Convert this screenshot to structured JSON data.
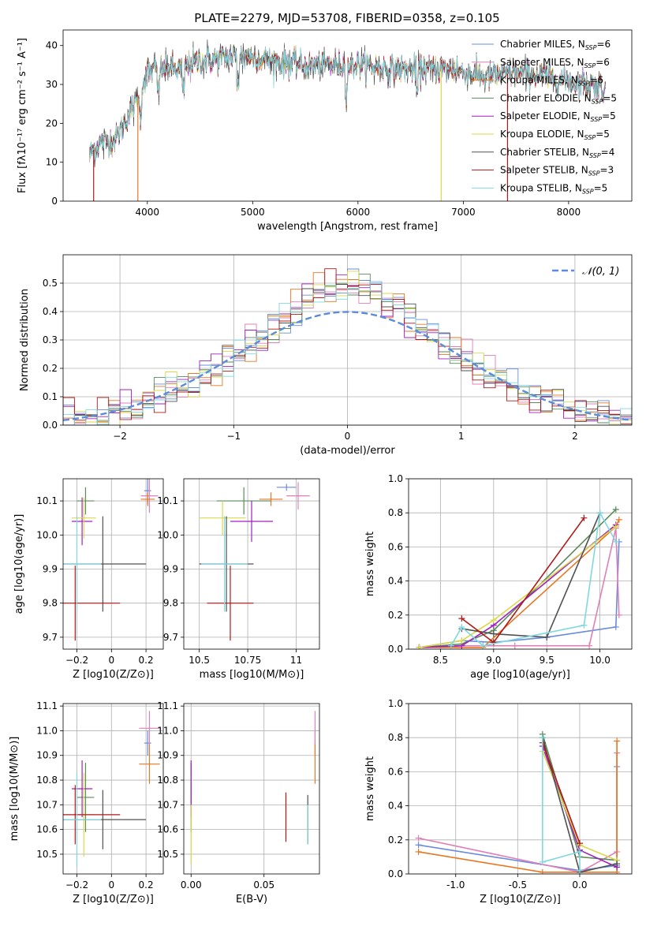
{
  "figure_title": "PLATE=2279, MJD=53708, FIBERID=0358, z=0.105",
  "colors": {
    "chabrier_miles": "#6a8bdc",
    "salpeter_miles": "#e07fb8",
    "kroupa_miles": "#e87722",
    "chabrier_elodie": "#5a8a5a",
    "salpeter_elodie": "#a020c0",
    "kroupa_elodie": "#d9d94a",
    "chabrier_stelib": "#505050",
    "salpeter_stelib": "#b01818",
    "kroupa_stelib": "#7fd8e0"
  },
  "chart_data": [
    {
      "id": "spectrum",
      "type": "line",
      "title": "PLATE=2279, MJD=53708, FIBERID=0358, z=0.105",
      "xlabel": "wavelength [Angstrom, rest frame]",
      "ylabel": "Flux [fλ10⁻¹⁷ erg cm⁻² s⁻¹ A⁻¹]",
      "xlim": [
        3200,
        8600
      ],
      "ylim": [
        0,
        44
      ],
      "xticks": [
        4000,
        5000,
        6000,
        7000,
        8000
      ],
      "yticks": [
        0,
        10,
        20,
        30,
        40
      ],
      "legend_position": "top-right",
      "legend": [
        "Chabrier MILES, N_SSP=6",
        "Salpeter MILES, N_SSP=6",
        "Kroupa MILES, N_SSP=6",
        "Chabrier ELODIE, N_SSP=5",
        "Salpeter ELODIE, N_SSP=5",
        "Kroupa ELODIE, N_SSP=5",
        "Chabrier STELIB, N_SSP=4",
        "Salpeter STELIB, N_SSP=3",
        "Kroupa STELIB, N_SSP=5"
      ],
      "spectrum_shape": {
        "x": [
          3450,
          3550,
          3700,
          3900,
          4000,
          4100,
          4300,
          4500,
          4800,
          5000,
          5200,
          5500,
          5800,
          6000,
          6300,
          6600,
          6900,
          7200,
          7500,
          7800,
          8000,
          8200,
          8350
        ],
        "y": [
          12,
          15,
          16,
          26,
          33,
          34,
          34,
          36,
          37,
          37,
          36,
          35,
          35,
          35,
          34,
          34,
          34,
          32,
          33,
          32,
          31,
          30,
          29
        ]
      },
      "spikes": [
        {
          "x": 3490,
          "y": 0
        },
        {
          "x": 3910,
          "y": 0
        },
        {
          "x": 6790,
          "y": 0
        },
        {
          "x": 7420,
          "y": 0
        }
      ]
    },
    {
      "id": "residuals",
      "type": "histogram",
      "xlabel": "(data-model)/error",
      "ylabel": "Normed distribution",
      "xlim": [
        -2.5,
        2.5
      ],
      "ylim": [
        0,
        0.6
      ],
      "xticks": [
        -2,
        -1,
        0,
        1,
        2
      ],
      "yticks": [
        0.0,
        0.1,
        0.2,
        0.3,
        0.4,
        0.5
      ],
      "legend_position": "top-right",
      "normal_label": "𝒩(0, 1)",
      "bin_width": 0.1
    },
    {
      "id": "age_vs_Z",
      "type": "errorbar",
      "xlabel": "Z [log10(Z/Z⊙)]",
      "ylabel": "age [log10(age/yr)]",
      "xlim": [
        -0.28,
        0.3
      ],
      "ylim": [
        9.665,
        10.165
      ],
      "xticks": [
        -0.2,
        0.0,
        0.2
      ],
      "yticks": [
        9.7,
        9.8,
        9.9,
        10.0,
        10.1
      ],
      "points": [
        {
          "c": "chabrier_miles",
          "x": 0.21,
          "xe": 0.02,
          "y": 10.13,
          "ye": 0.04
        },
        {
          "c": "salpeter_miles",
          "x": 0.22,
          "xe": 0.05,
          "y": 10.115,
          "ye": 0.05
        },
        {
          "c": "kroupa_miles",
          "x": 0.21,
          "xe": 0.04,
          "y": 10.105,
          "ye": 0.02
        },
        {
          "c": "chabrier_elodie",
          "x": -0.15,
          "xe": 0.05,
          "y": 10.1,
          "ye": 0.04
        },
        {
          "c": "salpeter_elodie",
          "x": -0.17,
          "xe": 0.06,
          "y": 10.04,
          "ye": 0.07
        },
        {
          "c": "kroupa_elodie",
          "x": -0.16,
          "xe": 0.07,
          "y": 10.05,
          "ye": 0.06
        },
        {
          "c": "chabrier_stelib",
          "x": -0.05,
          "xe": 0.25,
          "y": 9.915,
          "ye": 0.14
        },
        {
          "c": "salpeter_stelib",
          "x": -0.21,
          "xe": 0.26,
          "y": 9.8,
          "ye": 0.11
        },
        {
          "c": "kroupa_stelib",
          "x": -0.2,
          "xe": 0.14,
          "y": 9.915,
          "ye": 0.14
        }
      ]
    },
    {
      "id": "age_vs_mass",
      "type": "errorbar",
      "xlabel": "mass [log10(M/M⊙)]",
      "ylabel": "",
      "xlim": [
        10.42,
        11.12
      ],
      "ylim": [
        9.665,
        10.165
      ],
      "xticks": [
        10.5,
        10.75,
        11.0
      ],
      "yticks": [
        9.7,
        9.8,
        9.9,
        10.0,
        10.1
      ],
      "points": [
        {
          "c": "chabrier_miles",
          "x": 10.95,
          "xe": 0.05,
          "y": 10.14,
          "ye": 0.01
        },
        {
          "c": "salpeter_miles",
          "x": 11.01,
          "xe": 0.06,
          "y": 10.115,
          "ye": 0.04
        },
        {
          "c": "kroupa_miles",
          "x": 10.87,
          "xe": 0.06,
          "y": 10.105,
          "ye": 0.02
        },
        {
          "c": "chabrier_elodie",
          "x": 10.73,
          "xe": 0.14,
          "y": 10.1,
          "ye": 0.04
        },
        {
          "c": "salpeter_elodie",
          "x": 10.77,
          "xe": 0.11,
          "y": 10.04,
          "ye": 0.06
        },
        {
          "c": "kroupa_elodie",
          "x": 10.62,
          "xe": 0.12,
          "y": 10.05,
          "ye": 0.05
        },
        {
          "c": "chabrier_stelib",
          "x": 10.64,
          "xe": 0.14,
          "y": 9.915,
          "ye": 0.14
        },
        {
          "c": "salpeter_stelib",
          "x": 10.66,
          "xe": 0.12,
          "y": 9.8,
          "ye": 0.11
        },
        {
          "c": "kroupa_stelib",
          "x": 10.63,
          "xe": 0.12,
          "y": 9.915,
          "ye": 0.14
        }
      ]
    },
    {
      "id": "mass_weight_vs_age",
      "type": "line",
      "xlabel": "age [log10(age/yr)]",
      "ylabel": "mass weight",
      "xlim": [
        8.2,
        10.3
      ],
      "ylim": [
        0,
        1.0
      ],
      "xticks": [
        8.5,
        9.0,
        9.5,
        10.0
      ],
      "yticks": [
        0.0,
        0.2,
        0.4,
        0.6,
        0.8,
        1.0
      ],
      "series": [
        {
          "c": "chabrier_miles",
          "x": [
            8.3,
            8.7,
            9.0,
            9.5,
            10.15,
            10.18
          ],
          "y": [
            0.01,
            0.05,
            0.04,
            0.07,
            0.13,
            0.63
          ]
        },
        {
          "c": "salpeter_miles",
          "x": [
            8.3,
            8.7,
            8.9,
            9.2,
            9.9,
            10.15,
            10.18
          ],
          "y": [
            0.01,
            0.02,
            0.02,
            0.02,
            0.02,
            0.71,
            0.2
          ]
        },
        {
          "c": "kroupa_miles",
          "x": [
            8.3,
            8.9,
            10.15,
            10.18
          ],
          "y": [
            0.01,
            0.01,
            0.72,
            0.76
          ]
        },
        {
          "c": "chabrier_elodie",
          "x": [
            8.3,
            8.7,
            9.0,
            10.15
          ],
          "y": [
            0.01,
            0.03,
            0.11,
            0.82
          ]
        },
        {
          "c": "salpeter_elodie",
          "x": [
            8.3,
            8.7,
            9.0,
            10.15
          ],
          "y": [
            0.01,
            0.02,
            0.14,
            0.73
          ]
        },
        {
          "c": "kroupa_elodie",
          "x": [
            8.3,
            8.7,
            9.0,
            10.15
          ],
          "y": [
            0.01,
            0.05,
            0.17,
            0.72
          ]
        },
        {
          "c": "chabrier_stelib",
          "x": [
            8.7,
            9.0,
            9.5,
            10.0
          ],
          "y": [
            0.12,
            0.09,
            0.07,
            0.8
          ]
        },
        {
          "c": "salpeter_stelib",
          "x": [
            8.7,
            9.0,
            9.85
          ],
          "y": [
            0.18,
            0.04,
            0.77
          ]
        },
        {
          "c": "kroupa_stelib",
          "x": [
            8.6,
            8.7,
            8.9,
            9.85,
            10.0,
            10.15
          ],
          "y": [
            0.02,
            0.13,
            0.02,
            0.14,
            0.8,
            0.63
          ]
        }
      ]
    },
    {
      "id": "mass_vs_Z",
      "type": "errorbar",
      "xlabel": "Z [log10(Z/Z⊙)]",
      "ylabel": "mass [log10(M/M⊙)]",
      "xlim": [
        -0.28,
        0.3
      ],
      "ylim": [
        10.42,
        11.11
      ],
      "xticks": [
        -0.2,
        0.0,
        0.2
      ],
      "yticks": [
        10.5,
        10.6,
        10.7,
        10.8,
        10.9,
        11.0,
        11.1
      ],
      "points": [
        {
          "c": "chabrier_miles",
          "x": 0.21,
          "xe": 0.02,
          "y": 10.95,
          "ye": 0.05
        },
        {
          "c": "salpeter_miles",
          "x": 0.22,
          "xe": 0.06,
          "y": 11.01,
          "ye": 0.07
        },
        {
          "c": "kroupa_miles",
          "x": 0.22,
          "xe": 0.06,
          "y": 10.865,
          "ye": 0.08
        },
        {
          "c": "chabrier_elodie",
          "x": -0.15,
          "xe": 0.05,
          "y": 10.73,
          "ye": 0.14
        },
        {
          "c": "salpeter_elodie",
          "x": -0.17,
          "xe": 0.06,
          "y": 10.765,
          "ye": 0.115
        },
        {
          "c": "kroupa_elodie",
          "x": -0.16,
          "xe": 0.06,
          "y": 10.66,
          "ye": 0.17
        },
        {
          "c": "chabrier_stelib",
          "x": -0.05,
          "xe": 0.25,
          "y": 10.64,
          "ye": 0.12
        },
        {
          "c": "salpeter_stelib",
          "x": -0.21,
          "xe": 0.26,
          "y": 10.66,
          "ye": 0.12
        },
        {
          "c": "kroupa_stelib",
          "x": -0.2,
          "xe": 0.14,
          "y": 10.64,
          "ye": 0.19
        }
      ]
    },
    {
      "id": "mass_vs_ebv",
      "type": "errorbar",
      "xlabel": "E(B-V)",
      "ylabel": "",
      "xlim": [
        -0.005,
        0.088
      ],
      "ylim": [
        10.42,
        11.11
      ],
      "xticks": [
        0.0,
        0.05
      ],
      "yticks": [
        10.5,
        10.6,
        10.7,
        10.8,
        10.9,
        11.0,
        11.1
      ],
      "points": [
        {
          "c": "chabrier_miles",
          "x": 0.085,
          "xe": 0,
          "y": 10.95,
          "ye": 0.05
        },
        {
          "c": "salpeter_miles",
          "x": 0.085,
          "xe": 0,
          "y": 11.01,
          "ye": 0.07
        },
        {
          "c": "kroupa_miles",
          "x": 0.085,
          "xe": 0,
          "y": 10.865,
          "ye": 0.08
        },
        {
          "c": "chabrier_elodie",
          "x": 0.0,
          "xe": 0,
          "y": 10.73,
          "ye": 0.14
        },
        {
          "c": "salpeter_elodie",
          "x": 0.0,
          "xe": 0,
          "y": 10.765,
          "ye": 0.115
        },
        {
          "c": "kroupa_elodie",
          "x": 0.0,
          "xe": 0,
          "y": 10.58,
          "ye": 0.12
        },
        {
          "c": "chabrier_stelib",
          "x": 0.08,
          "xe": 0,
          "y": 10.64,
          "ye": 0.1
        },
        {
          "c": "salpeter_stelib",
          "x": 0.065,
          "xe": 0,
          "y": 10.65,
          "ye": 0.1
        },
        {
          "c": "kroupa_stelib",
          "x": 0.08,
          "xe": 0,
          "y": 10.62,
          "ye": 0.08
        }
      ]
    },
    {
      "id": "mass_weight_vs_Z",
      "type": "line",
      "xlabel": "Z [log10(Z/Z⊙)]",
      "ylabel": "mass weight",
      "xlim": [
        -1.38,
        0.42
      ],
      "ylim": [
        0,
        1.0
      ],
      "xticks": [
        -1.0,
        -0.5,
        0.0
      ],
      "yticks": [
        0.0,
        0.2,
        0.4,
        0.6,
        0.8,
        1.0
      ],
      "series": [
        {
          "c": "chabrier_miles",
          "x": [
            -1.3,
            0.0,
            0.3,
            0.3
          ],
          "y": [
            0.17,
            0.02,
            0.05,
            0.63
          ]
        },
        {
          "c": "salpeter_miles",
          "x": [
            -1.3,
            0.0,
            0.3,
            0.3
          ],
          "y": [
            0.21,
            0.01,
            0.13,
            0.71
          ]
        },
        {
          "c": "kroupa_miles",
          "x": [
            -1.3,
            -0.3,
            0.3,
            0.3
          ],
          "y": [
            0.13,
            0.01,
            0.01,
            0.78
          ]
        },
        {
          "c": "chabrier_elodie",
          "x": [
            -0.3,
            0.0,
            0.3
          ],
          "y": [
            0.82,
            0.1,
            0.08
          ]
        },
        {
          "c": "salpeter_elodie",
          "x": [
            -0.3,
            0.0,
            0.3
          ],
          "y": [
            0.75,
            0.14,
            0.04
          ]
        },
        {
          "c": "kroupa_elodie",
          "x": [
            -0.3,
            0.0,
            0.3
          ],
          "y": [
            0.72,
            0.17,
            0.08
          ]
        },
        {
          "c": "chabrier_stelib",
          "x": [
            -0.3,
            0.0,
            0.3
          ],
          "y": [
            0.8,
            0.01,
            0.06
          ]
        },
        {
          "c": "salpeter_stelib",
          "x": [
            -0.3,
            0.0
          ],
          "y": [
            0.77,
            0.18
          ]
        },
        {
          "c": "kroupa_stelib",
          "x": [
            -0.3,
            -0.3,
            0.0,
            0.0
          ],
          "y": [
            0.8,
            0.07,
            0.13,
            0.02
          ]
        }
      ]
    }
  ]
}
